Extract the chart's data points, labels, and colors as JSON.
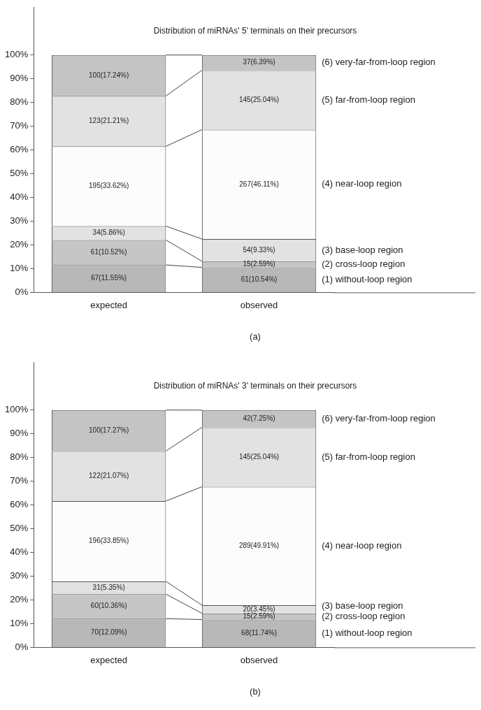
{
  "chart_data": [
    {
      "type": "bar",
      "stacked": true,
      "title": "Distribution of miRNAs' 5' terminals on their precursors",
      "categories": [
        "expected",
        "observed"
      ],
      "ylim": [
        0,
        120
      ],
      "yticks": [
        {
          "value": 0,
          "label": "0%"
        },
        {
          "value": 10,
          "label": "10%"
        },
        {
          "value": 20,
          "label": "20%"
        },
        {
          "value": 30,
          "label": "30%"
        },
        {
          "value": 40,
          "label": "40%"
        },
        {
          "value": 50,
          "label": "50%"
        },
        {
          "value": 60,
          "label": "60%"
        },
        {
          "value": 70,
          "label": "70%"
        },
        {
          "value": 80,
          "label": "80%"
        },
        {
          "value": 90,
          "label": "90%"
        },
        {
          "value": 100,
          "label": "100%"
        }
      ],
      "grid": false,
      "legend": false,
      "annotations": [
        "(a)"
      ],
      "series": [
        {
          "name": "(1) without-loop region",
          "color": "#b8b8b8",
          "values": [
            11.55,
            10.54
          ],
          "value_labels": [
            "67(11.55%)",
            "61(10.54%)"
          ]
        },
        {
          "name": "(2) cross-loop region",
          "color": "#c6c6c6",
          "values": [
            10.52,
            2.59
          ],
          "value_labels": [
            "61(10.52%)",
            "15(2.59%)"
          ]
        },
        {
          "name": "(3) base-loop region",
          "color": "#e2e2e2",
          "values": [
            5.86,
            9.33
          ],
          "value_labels": [
            "34(5.86%)",
            "54(9.33%)"
          ]
        },
        {
          "name": "(4) near-loop region",
          "color": "#fcfcfc",
          "values": [
            33.62,
            46.11
          ],
          "value_labels": [
            "195(33.62%)",
            "267(46.11%)"
          ]
        },
        {
          "name": "(5) far-from-loop region",
          "color": "#e2e2e2",
          "values": [
            21.21,
            25.04
          ],
          "value_labels": [
            "123(21.21%)",
            "145(25.04%)"
          ]
        },
        {
          "name": "(6) very-far-from-loop region",
          "color": "#c4c4c4",
          "values": [
            17.24,
            6.39
          ],
          "value_labels": [
            "100(17.24%)",
            "37(6.39%)"
          ]
        }
      ]
    },
    {
      "type": "bar",
      "stacked": true,
      "title": "Distribution of miRNAs' 3' terminals on their precursors",
      "categories": [
        "expected",
        "observed"
      ],
      "ylim": [
        0,
        120
      ],
      "yticks": [
        {
          "value": 0,
          "label": "0%"
        },
        {
          "value": 10,
          "label": "10%"
        },
        {
          "value": 20,
          "label": "20%"
        },
        {
          "value": 30,
          "label": "30%"
        },
        {
          "value": 40,
          "label": "40%"
        },
        {
          "value": 50,
          "label": "50%"
        },
        {
          "value": 60,
          "label": "60%"
        },
        {
          "value": 70,
          "label": "70%"
        },
        {
          "value": 80,
          "label": "80%"
        },
        {
          "value": 90,
          "label": "90%"
        },
        {
          "value": 100,
          "label": "100%"
        }
      ],
      "grid": false,
      "legend": false,
      "annotations": [
        "(b)"
      ],
      "series": [
        {
          "name": "(1) without-loop region",
          "color": "#b8b8b8",
          "values": [
            12.09,
            11.74
          ],
          "value_labels": [
            "70(12.09%)",
            "68(11.74%)"
          ]
        },
        {
          "name": "(2) cross-loop region",
          "color": "#c6c6c6",
          "values": [
            10.36,
            2.59
          ],
          "value_labels": [
            "60(10.36%)",
            "15(2.59%)"
          ]
        },
        {
          "name": "(3) base-loop region",
          "color": "#e2e2e2",
          "values": [
            5.35,
            3.45
          ],
          "value_labels": [
            "31(5.35%)",
            "20(3.45%)"
          ]
        },
        {
          "name": "(4) near-loop region",
          "color": "#fcfcfc",
          "values": [
            33.85,
            49.91
          ],
          "value_labels": [
            "196(33.85%)",
            "289(49.91%)"
          ]
        },
        {
          "name": "(5) far-from-loop region",
          "color": "#e2e2e2",
          "values": [
            21.07,
            25.04
          ],
          "value_labels": [
            "122(21.07%)",
            "145(25.04%)"
          ]
        },
        {
          "name": "(6) very-far-from-loop region",
          "color": "#c4c4c4",
          "values": [
            17.27,
            7.25
          ],
          "value_labels": [
            "100(17.27%)",
            "42(7.25%)"
          ]
        }
      ]
    }
  ]
}
